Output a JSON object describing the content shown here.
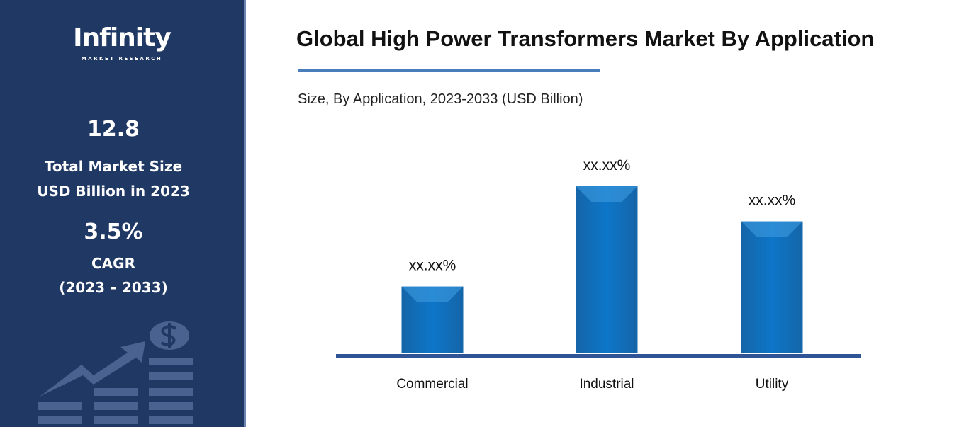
{
  "sidebar": {
    "logo_text": "Infinity",
    "logo_sub": "MARKET RESEARCH",
    "market_size_value": "12.8",
    "market_size_label_1": "Total Market Size",
    "market_size_label_2": "USD Billion in 2023",
    "cagr_value": "3.5%",
    "cagr_label": "CAGR",
    "cagr_period": "(2023 – 2033)",
    "decor_icon": "growth-chart-dollar-icon"
  },
  "chart_data": {
    "type": "bar",
    "title": "Global High Power Transformers Market By Application",
    "subtitle": "Size, By Application, 2023-2033 (USD Billion)",
    "categories": [
      "Commercial",
      "Industrial",
      "Utility"
    ],
    "values": [
      0.4,
      1.0,
      0.79
    ],
    "value_note": "relative bar heights (actual values not shown)",
    "data_labels": [
      "xx.xx%",
      "xx.xx%",
      "xx.xx%"
    ],
    "xlabel": "",
    "ylabel": "",
    "ylim": [
      0,
      1
    ],
    "grid": false,
    "colors": {
      "bar": "#0d6fbf",
      "axis": "#2f5597",
      "sidebar": "#203864"
    }
  }
}
